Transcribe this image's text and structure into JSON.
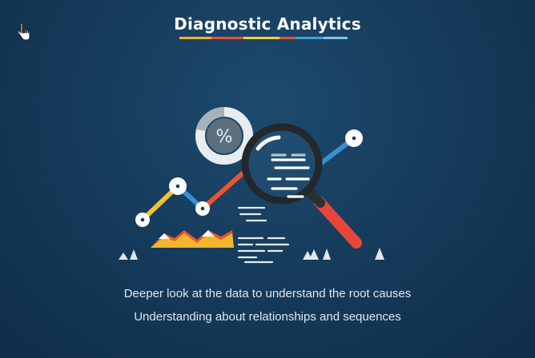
{
  "slide": {
    "title": "Diagnostic Analytics",
    "lines": [
      "Deeper look at the data to understand the root causes",
      "Understanding about relationships and sequences"
    ],
    "percent_symbol": "%"
  },
  "colors": {
    "background": "#163c5c",
    "underline": [
      "#f0b429",
      "#e8552f",
      "#f4d03f",
      "#3ea0d8",
      "#7fc4ec"
    ],
    "yellow": "#f2c12e",
    "orange": "#e8552f",
    "blue": "#3a8fd0",
    "red_handle": "#e8463a",
    "donut_fill": "#5b6f7f",
    "donut_track": "#e9edf0"
  },
  "icons": {
    "cursor": "hand-pointer-icon",
    "illustration": "magnifier-analytics-illustration"
  }
}
